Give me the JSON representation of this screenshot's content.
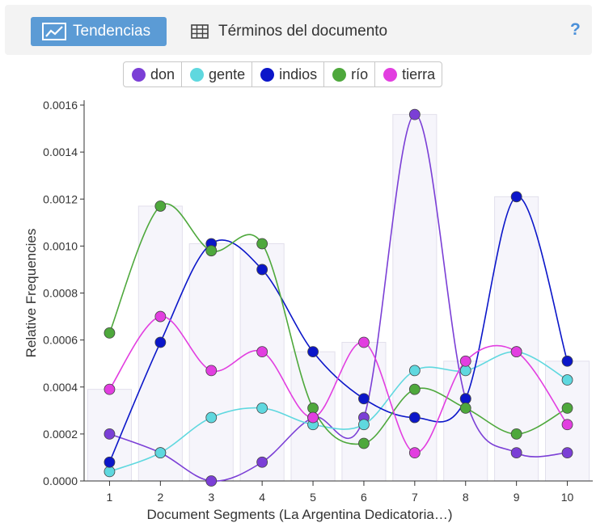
{
  "toolbar": {
    "tab_trends": "Tendencias",
    "tab_terms": "Términos del documento",
    "help": "?"
  },
  "colors": {
    "accent": "#5b9bd5",
    "don": "#7b3fd6",
    "gente": "#5fd8df",
    "indios": "#0b16c9",
    "rio": "#4ea83c",
    "tierra": "#e23ee0"
  },
  "chart_data": {
    "type": "line",
    "title": "",
    "xlabel": "Document Segments (La Argentina Dedicatoria…)",
    "ylabel": "Relative Frequencies",
    "categories": [
      "1",
      "2",
      "3",
      "4",
      "5",
      "6",
      "7",
      "8",
      "9",
      "10"
    ],
    "yticks": [
      "0.0000",
      "0.0002",
      "0.0004",
      "0.0006",
      "0.0008",
      "0.0010",
      "0.0012",
      "0.0014",
      "0.0016"
    ],
    "ylim": [
      0,
      0.0016
    ],
    "legend_position": "top",
    "bars": [
      0.00039,
      0.00117,
      0.00101,
      0.00101,
      0.00055,
      0.00059,
      0.00156,
      0.00051,
      0.00121,
      0.00051
    ],
    "series": [
      {
        "name": "don",
        "color": "#7b3fd6",
        "values": [
          0.0002,
          0.00012,
          0.0,
          8e-05,
          0.00027,
          0.00027,
          0.00156,
          0.00035,
          0.00012,
          0.00012
        ]
      },
      {
        "name": "gente",
        "color": "#5fd8df",
        "values": [
          4e-05,
          0.00012,
          0.00027,
          0.00031,
          0.00024,
          0.00024,
          0.00047,
          0.00047,
          0.00055,
          0.00043
        ]
      },
      {
        "name": "indios",
        "color": "#0b16c9",
        "values": [
          8e-05,
          0.00059,
          0.00101,
          0.0009,
          0.00055,
          0.00035,
          0.00027,
          0.00035,
          0.00121,
          0.00051
        ]
      },
      {
        "name": "río",
        "color": "#4ea83c",
        "values": [
          0.00063,
          0.00117,
          0.00098,
          0.00101,
          0.00031,
          0.00016,
          0.00039,
          0.00031,
          0.0002,
          0.00031
        ]
      },
      {
        "name": "tierra",
        "color": "#e23ee0",
        "values": [
          0.00039,
          0.0007,
          0.00047,
          0.00055,
          0.00027,
          0.00059,
          0.00012,
          0.00051,
          0.00055,
          0.00024
        ]
      }
    ]
  }
}
